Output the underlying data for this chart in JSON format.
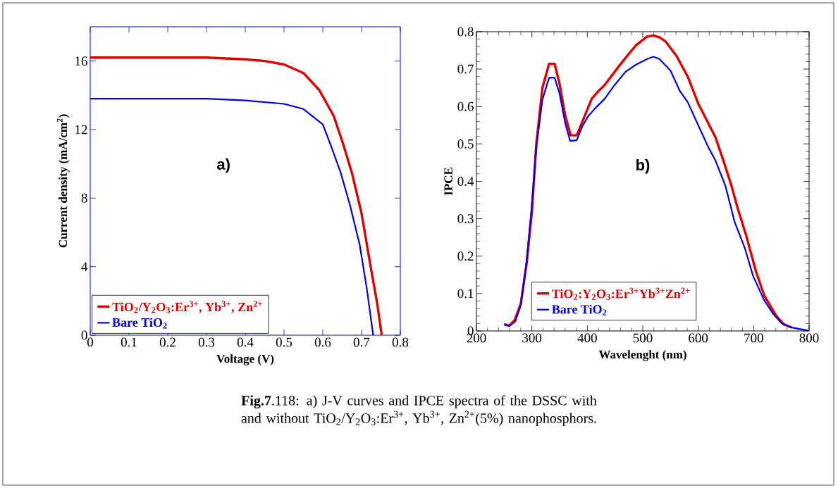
{
  "chart_data": [
    {
      "type": "line",
      "xlabel": "Voltage (V)",
      "ylabel": "Current density (mA/cm$^{2}$)",
      "xlim": [
        0,
        0.8
      ],
      "ylim": [
        0,
        18
      ],
      "xticks": [
        0,
        0.1,
        0.2,
        0.3,
        0.4,
        0.5,
        0.6,
        0.7,
        0.8
      ],
      "yticks": [
        0,
        4,
        8,
        12,
        16
      ],
      "legend": "bottom left",
      "annotations": [
        "a)",
        "**Fig.7**.118: a) J-V curves and IPCE spectra of the DSSC with and without TiO$_{2}$/Y$_{2}$O$_{3}$:Er$^{3+}$, Yb$^{3+}$, Zn$^{2+}$(5%) nanophosphors."
      ],
      "series": [
        {
          "name": "TiO$_{2}$/Y$_{2}$O$_{3}$:Er$^{3+}$, Yb$^{3+}$, Zn$^{2+}$",
          "color": "#e00000",
          "x": [
            0,
            0.1,
            0.2,
            0.3,
            0.4,
            0.45,
            0.5,
            0.55,
            0.591,
            0.628,
            0.652,
            0.676,
            0.7,
            0.725,
            0.74,
            0.752
          ],
          "values": [
            16.2,
            16.2,
            16.2,
            16.2,
            16.1,
            16.0,
            15.8,
            15.3,
            14.3,
            12.8,
            11.2,
            9.4,
            7.1,
            3.8,
            1.9,
            0
          ]
        },
        {
          "name": "Bare TiO$_{2}$",
          "color": "#0000e0",
          "x": [
            0,
            0.1,
            0.2,
            0.3,
            0.4,
            0.5,
            0.55,
            0.6,
            0.622,
            0.646,
            0.67,
            0.695,
            0.713,
            0.73
          ],
          "values": [
            13.8,
            13.8,
            13.8,
            13.8,
            13.7,
            13.5,
            13.2,
            12.3,
            11.0,
            9.5,
            7.6,
            5.3,
            2.8,
            0
          ]
        }
      ]
    },
    {
      "type": "line",
      "xlabel": "Wavelenght (nm)",
      "ylabel": "IPCE",
      "xlim": [
        200,
        800
      ],
      "ylim": [
        0,
        0.8
      ],
      "xticks": [
        200,
        300,
        400,
        500,
        600,
        700,
        800
      ],
      "yticks": [
        0,
        0.1,
        0.2,
        0.3,
        0.4,
        0.5,
        0.6,
        0.7,
        0.8
      ],
      "legend": "bottom",
      "annotations": [
        "b)"
      ],
      "series": [
        {
          "name": "TiO$_{2}$:Y$_{2}$O$_{3}$:Er$^{3+}$Yb$^{3+}$Zn$^{2+}$",
          "color": "#e00000",
          "x": [
            250,
            259,
            269,
            280,
            291,
            300,
            308,
            319,
            331,
            341,
            350,
            360,
            370,
            381,
            392,
            408,
            418,
            431,
            453,
            469,
            488,
            508,
            519,
            530,
            541,
            561,
            581,
            600,
            631,
            646,
            660,
            671,
            686,
            704,
            719,
            741,
            754,
            769
          ],
          "values": [
            0.018,
            0.014,
            0.029,
            0.073,
            0.186,
            0.32,
            0.5,
            0.65,
            0.714,
            0.714,
            0.66,
            0.576,
            0.523,
            0.523,
            0.563,
            0.621,
            0.638,
            0.657,
            0.7,
            0.73,
            0.764,
            0.787,
            0.79,
            0.785,
            0.774,
            0.735,
            0.68,
            0.608,
            0.518,
            0.453,
            0.388,
            0.329,
            0.258,
            0.16,
            0.095,
            0.04,
            0.018,
            0.009
          ]
        },
        {
          "name": "Bare TiO$_{2}$",
          "color": "#0000e0",
          "x": [
            250,
            259,
            270,
            280,
            290,
            299,
            308,
            319,
            331,
            341,
            350,
            360,
            369,
            381,
            391,
            401,
            414,
            431,
            449,
            469,
            488,
            508,
            519,
            530,
            550,
            567,
            581,
            600,
            618,
            631,
            649,
            666,
            684,
            699,
            719,
            736,
            750,
            769,
            798
          ],
          "values": [
            0.018,
            0.013,
            0.025,
            0.069,
            0.18,
            0.32,
            0.49,
            0.618,
            0.677,
            0.677,
            0.634,
            0.556,
            0.508,
            0.51,
            0.547,
            0.573,
            0.595,
            0.62,
            0.657,
            0.693,
            0.712,
            0.727,
            0.733,
            0.727,
            0.696,
            0.641,
            0.612,
            0.55,
            0.492,
            0.456,
            0.388,
            0.29,
            0.222,
            0.147,
            0.082,
            0.044,
            0.021,
            0.009,
            0.001
          ]
        }
      ]
    }
  ]
}
